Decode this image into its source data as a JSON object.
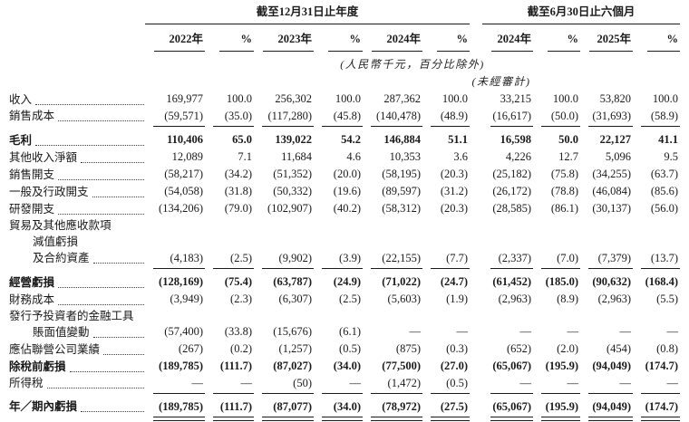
{
  "colors": {
    "text": "#1a1a1a",
    "background": "#ffffff"
  },
  "table": {
    "col_groups": [
      {
        "label": "截至12月31日止年度",
        "span": 6
      },
      {
        "label": "截至6月30日止六個月",
        "span": 4
      }
    ],
    "columns": [
      "2022年",
      "%",
      "2023年",
      "%",
      "2024年",
      "%",
      "2024年",
      "%",
      "2025年",
      "%"
    ],
    "unit_note": "(人民幣千元，百分比除外)",
    "unaudited_note": "(未經審計)",
    "rows": [
      {
        "lines": [
          {
            "text": "收入",
            "indent": 0
          }
        ],
        "leader": true,
        "bold": false,
        "values": [
          "169,977",
          "100.0",
          "256,302",
          "100.0",
          "287,362",
          "100.0",
          "33,215",
          "100.0",
          "53,820",
          "100.0"
        ]
      },
      {
        "lines": [
          {
            "text": "銷售成本",
            "indent": 0
          }
        ],
        "leader": true,
        "bold": false,
        "rule_below": true,
        "values": [
          "(59,571)",
          "(35.0)",
          "(117,280)",
          "(45.8)",
          "(140,478)",
          "(48.9)",
          "(16,617)",
          "(50.0)",
          "(31,693)",
          "(58.9)"
        ]
      },
      {
        "lines": [
          {
            "text": "毛利",
            "indent": 0
          }
        ],
        "leader": true,
        "bold": true,
        "space_above": true,
        "values": [
          "110,406",
          "65.0",
          "139,022",
          "54.2",
          "146,884",
          "51.1",
          "16,598",
          "50.0",
          "22,127",
          "41.1"
        ]
      },
      {
        "lines": [
          {
            "text": "其他收入淨額",
            "indent": 0
          }
        ],
        "leader": true,
        "bold": false,
        "values": [
          "12,089",
          "7.1",
          "11,684",
          "4.6",
          "10,353",
          "3.6",
          "4,226",
          "12.7",
          "5,096",
          "9.5"
        ]
      },
      {
        "lines": [
          {
            "text": "銷售開支",
            "indent": 0
          }
        ],
        "leader": true,
        "bold": false,
        "values": [
          "(58,217)",
          "(34.2)",
          "(51,352)",
          "(20.0)",
          "(58,195)",
          "(20.3)",
          "(25,182)",
          "(75.8)",
          "(34,255)",
          "(63.7)"
        ]
      },
      {
        "lines": [
          {
            "text": "一般及行政開支",
            "indent": 0
          }
        ],
        "leader": true,
        "bold": false,
        "values": [
          "(54,058)",
          "(31.8)",
          "(50,332)",
          "(19.6)",
          "(89,597)",
          "(31.2)",
          "(26,172)",
          "(78.8)",
          "(46,084)",
          "(85.6)"
        ]
      },
      {
        "lines": [
          {
            "text": "研發開支",
            "indent": 0
          }
        ],
        "leader": true,
        "bold": false,
        "values": [
          "(134,206)",
          "(79.0)",
          "(102,907)",
          "(40.2)",
          "(58,312)",
          "(20.3)",
          "(28,585)",
          "(86.1)",
          "(30,137)",
          "(56.0)"
        ]
      },
      {
        "lines": [
          {
            "text": "貿易及其他應收款項",
            "indent": 0
          },
          {
            "text": "減值虧損",
            "indent": 1
          },
          {
            "text": "及合約資產",
            "indent": 1
          }
        ],
        "leader": true,
        "bold": false,
        "rule_below": true,
        "values": [
          "(4,183)",
          "(2.5)",
          "(9,902)",
          "(3.9)",
          "(22,155)",
          "(7.7)",
          "(2,337)",
          "(7.0)",
          "(7,379)",
          "(13.7)"
        ]
      },
      {
        "lines": [
          {
            "text": "經營虧損",
            "indent": 0
          }
        ],
        "leader": true,
        "bold": true,
        "space_above": true,
        "values": [
          "(128,169)",
          "(75.4)",
          "(63,787)",
          "(24.9)",
          "(71,022)",
          "(24.7)",
          "(61,452)",
          "(185.0)",
          "(90,632)",
          "(168.4)"
        ]
      },
      {
        "lines": [
          {
            "text": "財務成本",
            "indent": 0
          }
        ],
        "leader": true,
        "bold": false,
        "values": [
          "(3,949)",
          "(2.3)",
          "(6,307)",
          "(2.5)",
          "(5,603)",
          "(1.9)",
          "(2,963)",
          "(8.9)",
          "(2,963)",
          "(5.5)"
        ]
      },
      {
        "lines": [
          {
            "text": "發行予投資者的金融工具",
            "indent": 0
          },
          {
            "text": "賬面值變動",
            "indent": 1
          }
        ],
        "leader": true,
        "bold": false,
        "values": [
          "(57,400)",
          "(33.8)",
          "(15,676)",
          "(6.1)",
          "—",
          "—",
          "—",
          "—",
          "—",
          "—"
        ]
      },
      {
        "lines": [
          {
            "text": "應佔聯營公司業績",
            "indent": 0
          }
        ],
        "leader": true,
        "bold": false,
        "values": [
          "(267)",
          "(0.2)",
          "(1,257)",
          "(0.5)",
          "(875)",
          "(0.3)",
          "(652)",
          "(2.0)",
          "(454)",
          "(0.8)"
        ]
      },
      {
        "lines": [
          {
            "text": "除稅前虧損",
            "indent": 0
          }
        ],
        "leader": true,
        "bold": true,
        "values": [
          "(189,785)",
          "(111.7)",
          "(87,027)",
          "(34.0)",
          "(77,500)",
          "(27.0)",
          "(65,067)",
          "(195.9)",
          "(94,049)",
          "(174.7)"
        ]
      },
      {
        "lines": [
          {
            "text": "所得稅",
            "indent": 0
          }
        ],
        "leader": true,
        "bold": false,
        "rule_below": true,
        "values": [
          "—",
          "—",
          "(50)",
          "—",
          "(1,472)",
          "(0.5)",
          "—",
          "—",
          "—",
          "—"
        ]
      },
      {
        "lines": [
          {
            "text": "年／期內虧損",
            "indent": 0
          }
        ],
        "leader": true,
        "bold": true,
        "space_above": true,
        "double_rule_below": true,
        "values": [
          "(189,785)",
          "(111.7)",
          "(87,077)",
          "(34.0)",
          "(78,972)",
          "(27.5)",
          "(65,067)",
          "(195.9)",
          "(94,049)",
          "(174.7)"
        ]
      }
    ]
  }
}
